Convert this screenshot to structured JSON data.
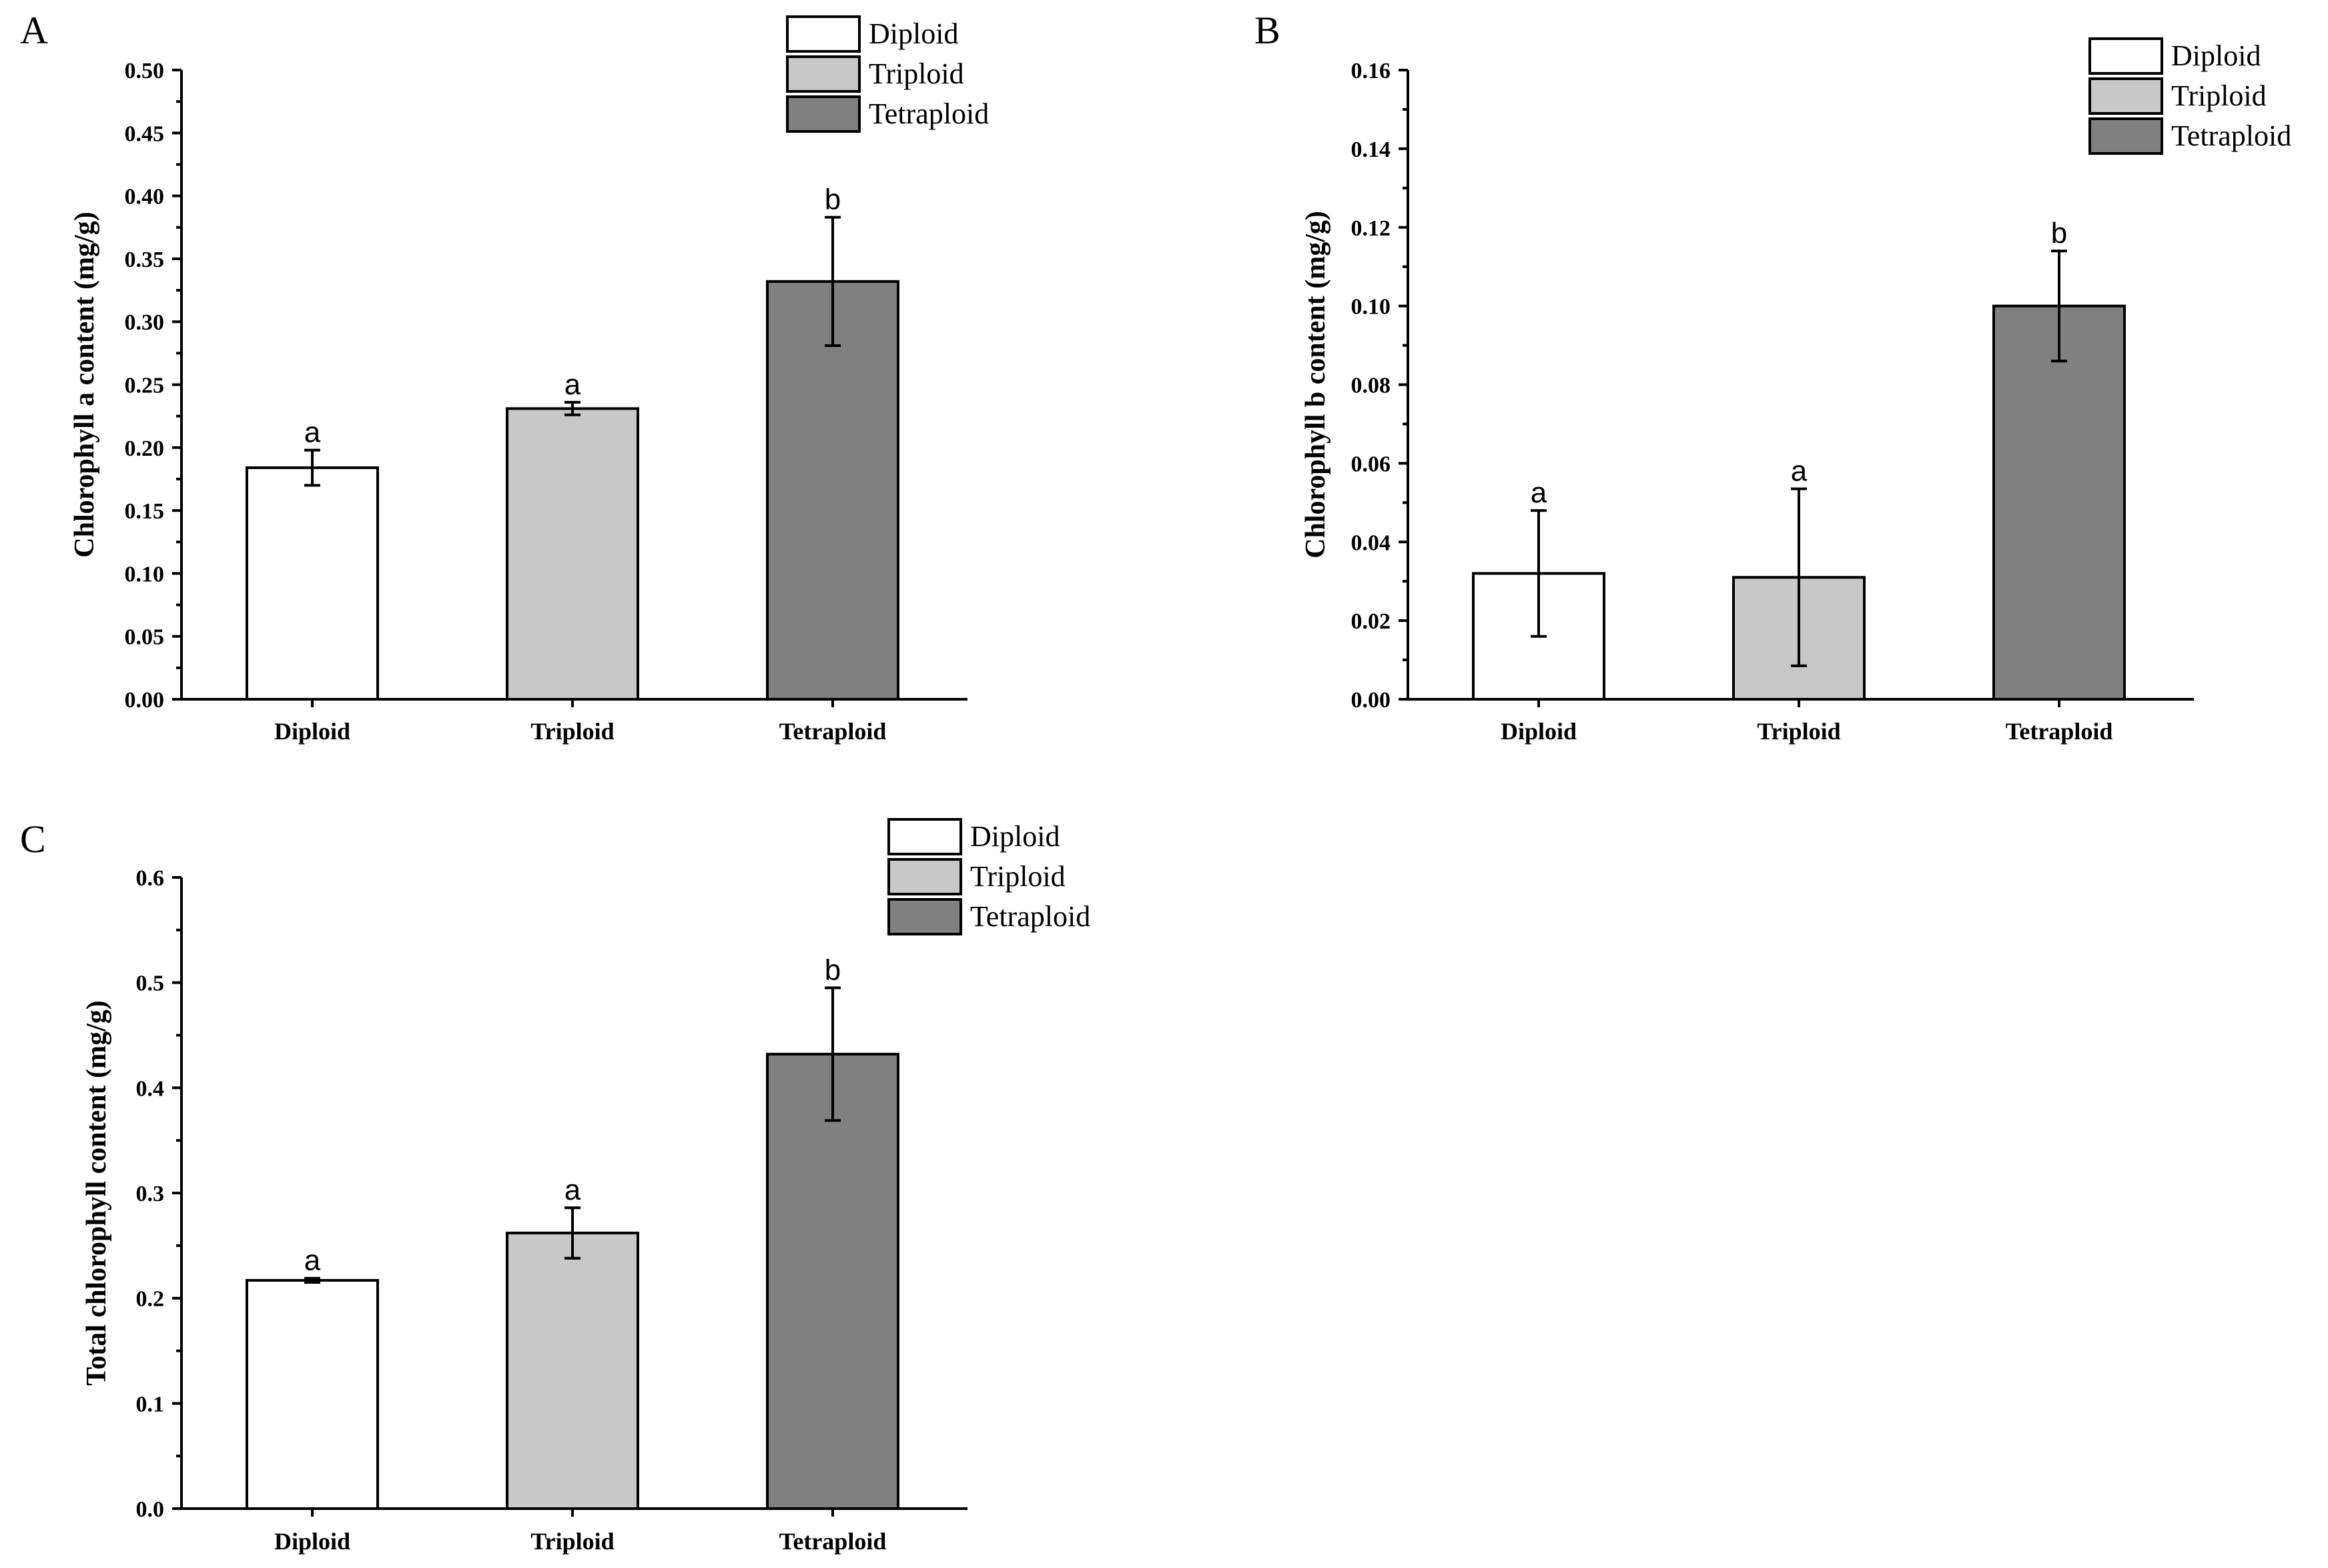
{
  "colors": {
    "Diploid": "#ffffff",
    "Triploid": "#c8c8c8",
    "Tetraploid": "#808080"
  },
  "chart_data": [
    {
      "panel": "A",
      "type": "bar",
      "categories": [
        "Diploid",
        "Triploid",
        "Tetraploid"
      ],
      "values": [
        0.184,
        0.231,
        0.332
      ],
      "errors": [
        0.014,
        0.005,
        0.051
      ],
      "significance": [
        "a",
        "a",
        "b"
      ],
      "ylabel": "Chlorophyll a content (mg/g)",
      "xlabel": "",
      "ylim": [
        0,
        0.5
      ],
      "yticks": [
        "0.00",
        "0.05",
        "0.10",
        "0.15",
        "0.20",
        "0.25",
        "0.30",
        "0.35",
        "0.40",
        "0.45",
        "0.50"
      ],
      "legend": [
        "Diploid",
        "Triploid",
        "Tetraploid"
      ],
      "legend_position": "top-right"
    },
    {
      "panel": "B",
      "type": "bar",
      "categories": [
        "Diploid",
        "Triploid",
        "Tetraploid"
      ],
      "values": [
        0.032,
        0.031,
        0.1
      ],
      "errors": [
        0.016,
        0.0225,
        0.014
      ],
      "significance": [
        "a",
        "a",
        "b"
      ],
      "ylabel": "Chlorophyll b content (mg/g)",
      "xlabel": "",
      "ylim": [
        0,
        0.16
      ],
      "yticks": [
        "0.00",
        "0.02",
        "0.04",
        "0.06",
        "0.08",
        "0.10",
        "0.12",
        "0.14",
        "0.16"
      ],
      "legend": [
        "Diploid",
        "Triploid",
        "Tetraploid"
      ],
      "legend_position": "top-right"
    },
    {
      "panel": "C",
      "type": "bar",
      "categories": [
        "Diploid",
        "Triploid",
        "Tetraploid"
      ],
      "values": [
        0.217,
        0.262,
        0.432
      ],
      "errors": [
        0.002,
        0.024,
        0.063
      ],
      "significance": [
        "a",
        "a",
        "b"
      ],
      "ylabel": "Total chlorophyll content (mg/g)",
      "xlabel": "",
      "ylim": [
        0,
        0.6
      ],
      "yticks": [
        "0.0",
        "0.1",
        "0.2",
        "0.3",
        "0.4",
        "0.5",
        "0.6"
      ],
      "legend": [
        "Diploid",
        "Triploid",
        "Tetraploid"
      ],
      "legend_position": "top-right"
    }
  ]
}
